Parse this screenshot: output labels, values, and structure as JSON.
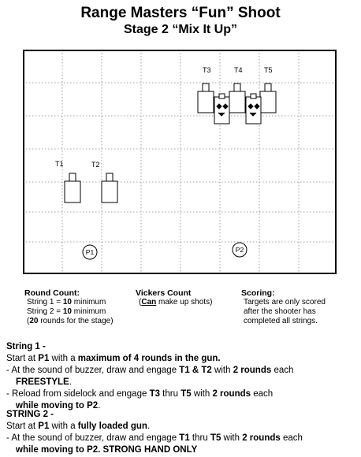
{
  "title": "Range Masters “Fun” Shoot",
  "subtitle": "Stage 2  “Mix It Up”",
  "diagram": {
    "targets": [
      "T1",
      "T2",
      "T3",
      "T4",
      "T5"
    ],
    "positions": [
      "P1",
      "P2"
    ]
  },
  "round_count": {
    "heading": "Round Count:",
    "line1_pre": "String 1 = ",
    "line1_val": "10",
    "line1_post": " minimum",
    "line2_pre": "String 2 = ",
    "line2_val": "10",
    "line2_post": " minimum",
    "line3_pre": "(",
    "line3_val": "20",
    "line3_post": " rounds for the stage)"
  },
  "vickers": {
    "heading": "Vickers Count",
    "pre": "(",
    "can": "Can",
    "post": " make up shots)"
  },
  "scoring": {
    "heading": "Scoring:",
    "lines": [
      "Targets are only scored",
      "after the shooter has",
      "completed all strings."
    ]
  },
  "string1": {
    "heading": "String 1 -",
    "l1a": "Start at ",
    "l1b": "P1",
    "l1c": " with a ",
    "l1d": "maximum of 4 rounds in the gun.",
    "l2a": " - At the sound of buzzer, draw and engage ",
    "l2b": "T1 & T2",
    "l2c": "  with ",
    "l2d": "2 rounds",
    "l2e": " each",
    "l3a": "FREESTYLE",
    "l3b": ".",
    "l4a": " - Reload from sidelock and engage ",
    "l4b": "T3",
    "l4c": " thru ",
    "l4d": "T5",
    "l4e": " with ",
    "l4f": "2 rounds",
    "l4g": " each",
    "l5a": "while moving to ",
    "l5b": "P2",
    "l5c": "."
  },
  "string2": {
    "heading": "STRING 2 -",
    "l1a": "Start at ",
    "l1b": "P1",
    "l1c": " with a ",
    "l1d": "fully loaded gun",
    "l1e": ".",
    "l2a": " - At the sound of buzzer, draw and engage ",
    "l2b": "T1",
    "l2c": " thru ",
    "l2d": "T5",
    "l2e": " with ",
    "l2f": "2 rounds",
    "l2g": " each",
    "l3a": "while moving  to  ",
    "l3b": "P2",
    "l3c": ".  STRONG HAND ONLY"
  }
}
